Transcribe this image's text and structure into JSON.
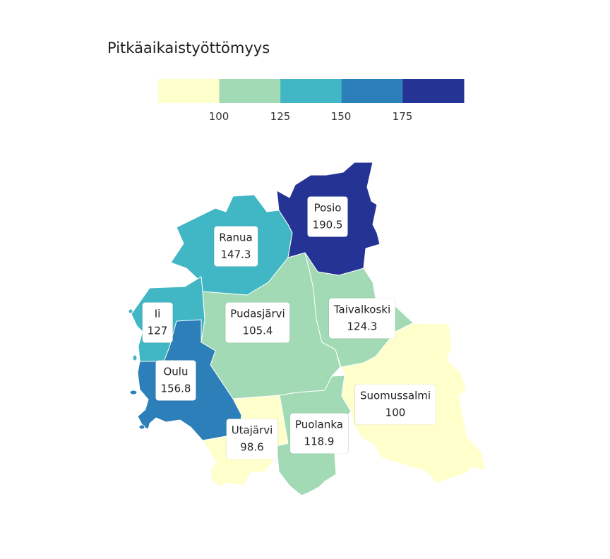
{
  "legend": {
    "title": "Pitkäaikaistyöttömyys",
    "bins": [
      {
        "color": "#ffffcc"
      },
      {
        "color": "#a1dab4"
      },
      {
        "color": "#41b6c4"
      },
      {
        "color": "#2c7fb8"
      },
      {
        "color": "#253494"
      }
    ],
    "ticks": [
      "100",
      "125",
      "150",
      "175"
    ]
  },
  "regions": [
    {
      "id": "posio",
      "name": "Posio",
      "value": "190.5",
      "color": "#253494"
    },
    {
      "id": "ranua",
      "name": "Ranua",
      "value": "147.3",
      "color": "#41b6c4"
    },
    {
      "id": "ii",
      "name": "Ii",
      "value": "127",
      "color": "#41b6c4"
    },
    {
      "id": "pudasjarvi",
      "name": "Pudasjärvi",
      "value": "105.4",
      "color": "#a1dab4"
    },
    {
      "id": "taivalkoski",
      "name": "Taivalkoski",
      "value": "124.3",
      "color": "#a1dab4"
    },
    {
      "id": "oulu",
      "name": "Oulu",
      "value": "156.8",
      "color": "#2c7fb8"
    },
    {
      "id": "suomussalmi",
      "name": "Suomussalmi",
      "value": "100",
      "color": "#ffffcc"
    },
    {
      "id": "utajarvi",
      "name": "Utajärvi",
      "value": "98.6",
      "color": "#ffffcc"
    },
    {
      "id": "puolanka",
      "name": "Puolanka",
      "value": "118.9",
      "color": "#a1dab4"
    }
  ]
}
